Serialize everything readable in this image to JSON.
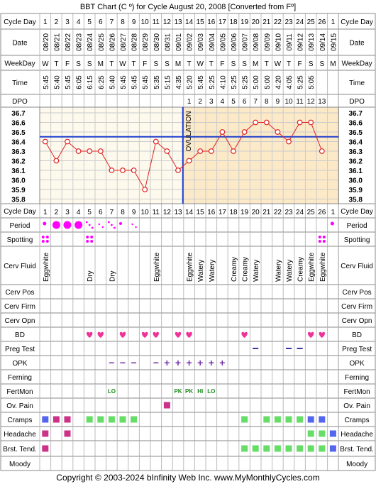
{
  "title": "BBT Chart (C º) for Cycle August 20, 2008  [Converted from Fº]",
  "footer": "Copyright © 2003-2024 bInfinity Web Inc.    www.MyMonthlyCycles.com",
  "labels": {
    "cycle_day": "Cycle Day",
    "date": "Date",
    "weekday": "WeekDay",
    "time": "Time",
    "dpo": "DPO",
    "period": "Period",
    "spotting": "Spotting",
    "cerv_fluid": "Cerv Fluid",
    "cerv_pos": "Cerv Pos",
    "cerv_firm": "Cerv Firm",
    "cerv_opn": "Cerv Opn",
    "bd": "BD",
    "preg_test": "Preg Test",
    "opk": "OPK",
    "ferning": "Ferning",
    "fertmon": "FertMon",
    "ov_pain": "Ov. Pain",
    "cramps": "Cramps",
    "headache": "Headache",
    "brst_tend": "Brst. Tend.",
    "moody": "Moody",
    "ovulation": "OVULATION"
  },
  "colors": {
    "pink": "#ee3399",
    "magenta": "#ff00ff",
    "green": "#66dd66",
    "blue": "#5566ee",
    "darkpink": "#cc3388",
    "navy": "#3333aa",
    "red": "#dd2222",
    "ovu_blue": "#1f3fcf",
    "post_bg": "#fce9c7",
    "pre_bg": "#fdf9ec",
    "green_text": "#1a8a1a"
  },
  "chart_data": {
    "type": "line",
    "ylim": [
      35.8,
      36.7
    ],
    "yticks": [
      "36.7",
      "36.6",
      "36.5",
      "36.4",
      "36.3",
      "36.2",
      "36.1",
      "36.0",
      "35.9",
      "35.8"
    ],
    "coverline": 36.45,
    "ovulation_day": 13,
    "days": [
      1,
      2,
      3,
      4,
      5,
      6,
      7,
      8,
      9,
      10,
      11,
      12,
      13,
      14,
      15,
      16,
      17,
      18,
      19,
      20,
      21,
      22,
      23,
      24,
      25,
      26,
      1
    ],
    "dates": [
      "08/20",
      "08/21",
      "08/22",
      "08/23",
      "08/24",
      "08/25",
      "08/26",
      "08/27",
      "08/28",
      "08/29",
      "08/30",
      "08/31",
      "09/01",
      "09/02",
      "09/03",
      "09/04",
      "09/05",
      "09/06",
      "09/07",
      "09/08",
      "09/09",
      "09/10",
      "09/11",
      "09/12",
      "09/13",
      "09/14",
      "09/15"
    ],
    "weekdays": [
      "W",
      "T",
      "F",
      "S",
      "S",
      "M",
      "T",
      "W",
      "T",
      "F",
      "S",
      "S",
      "M",
      "T",
      "W",
      "T",
      "F",
      "S",
      "S",
      "M",
      "T",
      "W",
      "T",
      "F",
      "S",
      "S",
      "M"
    ],
    "times": [
      "5:45",
      "5:40",
      "5:45",
      "6:05",
      "6:15",
      "6:25",
      "5:40",
      "5:45",
      "5:45",
      "5:45",
      "5:35",
      "5:15",
      "4:35",
      "5:20",
      "5:45",
      "5:25",
      "4:10",
      "5:25",
      "5:25",
      "5:00",
      "5:00",
      "4:20",
      "4:05",
      "5:25",
      "5:05",
      "",
      ""
    ],
    "dpo": [
      "",
      "",
      "",
      "",
      "",
      "",
      "",
      "",
      "",
      "",
      "",
      "",
      "",
      "1",
      "2",
      "3",
      "4",
      "5",
      "6",
      "7",
      "8",
      "9",
      "10",
      "11",
      "12",
      "13",
      ""
    ],
    "series": [
      {
        "values": [
          36.4,
          36.2,
          36.4,
          36.3,
          36.3,
          36.3,
          36.1,
          36.1,
          36.1,
          35.9,
          36.4,
          36.3,
          36.1,
          36.2,
          36.3,
          36.3,
          36.5,
          36.3,
          36.5,
          36.6,
          36.6,
          36.5,
          36.4,
          36.6,
          36.6,
          36.3,
          null
        ]
      }
    ]
  },
  "rows": {
    "period": [
      "small",
      "big",
      "big",
      "big",
      "light",
      "tiny",
      "light",
      "dot",
      "tiny",
      "",
      "",
      "",
      "",
      "",
      "",
      "",
      "",
      "",
      "",
      "",
      "",
      "",
      "",
      "",
      "",
      "",
      "small"
    ],
    "spotting": [
      1,
      0,
      0,
      0,
      1,
      0,
      0,
      0,
      0,
      0,
      0,
      0,
      0,
      0,
      0,
      0,
      0,
      0,
      0,
      0,
      0,
      0,
      0,
      0,
      0,
      1,
      0
    ],
    "cerv_fluid": [
      "Eggwhite",
      "",
      "",
      "",
      "Dry",
      "",
      "Dry",
      "",
      "",
      "",
      "Eggwhite",
      "",
      "",
      "Eggwhite",
      "Watery",
      "Watery",
      "",
      "Creamy",
      "Creamy",
      "Watery",
      "",
      "Watery",
      "Watery",
      "Creamy",
      "Eggwhite",
      "Eggwhite",
      ""
    ],
    "bd": [
      0,
      0,
      0,
      0,
      1,
      1,
      0,
      1,
      0,
      1,
      1,
      0,
      1,
      1,
      0,
      0,
      0,
      0,
      1,
      0,
      0,
      0,
      0,
      0,
      1,
      1,
      0
    ],
    "preg_test": [
      0,
      0,
      0,
      0,
      0,
      0,
      0,
      0,
      0,
      0,
      0,
      0,
      0,
      0,
      0,
      0,
      0,
      0,
      0,
      1,
      0,
      0,
      1,
      1,
      0,
      0,
      0
    ],
    "opk": [
      "",
      "",
      "",
      "",
      "",
      "",
      "−",
      "−",
      "−",
      "",
      "−",
      "+",
      "+",
      "+",
      "+",
      "+",
      "+",
      "",
      "",
      "",
      "",
      "",
      "",
      "",
      "",
      "",
      ""
    ],
    "fertmon": [
      "",
      "",
      "",
      "",
      "",
      "",
      "LO",
      "",
      "",
      "",
      "",
      "",
      "PK",
      "PK",
      "HI",
      "LO",
      "",
      "",
      "",
      "",
      "",
      "",
      "",
      "",
      "",
      "",
      ""
    ],
    "ov_pain": [
      0,
      0,
      0,
      0,
      0,
      0,
      0,
      0,
      0,
      0,
      0,
      1,
      0,
      0,
      0,
      0,
      0,
      0,
      0,
      0,
      0,
      0,
      0,
      0,
      0,
      0,
      0
    ],
    "cramps": [
      "b",
      "m",
      "m",
      "",
      "g",
      "g",
      "g",
      "g",
      "g",
      "",
      "",
      "",
      "",
      "",
      "",
      "",
      "",
      "",
      "g",
      "",
      "g",
      "g",
      "g",
      "g",
      "b",
      "b",
      ""
    ],
    "headache": [
      "m",
      "",
      "m",
      "",
      "",
      "",
      "",
      "",
      "",
      "",
      "",
      "",
      "",
      "",
      "",
      "",
      "",
      "",
      "",
      "",
      "",
      "",
      "",
      "",
      "g",
      "g",
      "b"
    ],
    "brst_tend": [
      "m",
      "",
      "",
      "",
      "",
      "",
      "",
      "",
      "",
      "",
      "",
      "",
      "",
      "",
      "",
      "",
      "",
      "",
      "g",
      "g",
      "g",
      "g",
      "g",
      "g",
      "g",
      "g",
      "b"
    ]
  }
}
